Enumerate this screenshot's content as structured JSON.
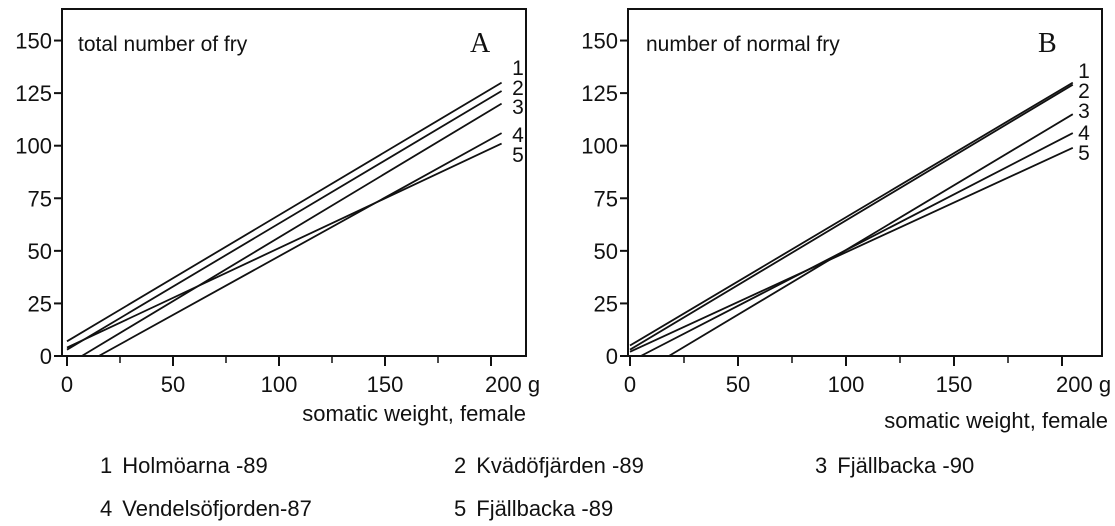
{
  "chart_data": [
    {
      "type": "line",
      "panel": "A",
      "title": "total number of fry",
      "xlabel": "somatic weight, female",
      "ylabel": "",
      "xlim": [
        0,
        205
      ],
      "ylim": [
        0,
        165
      ],
      "x_ticks": [
        "0",
        "50",
        "100",
        "150",
        "200 g"
      ],
      "x_tick_values": [
        0,
        50,
        100,
        150,
        200
      ],
      "y_ticks": [
        "0",
        "25",
        "50",
        "75",
        "100",
        "125",
        "150"
      ],
      "y_tick_values": [
        0,
        25,
        50,
        75,
        100,
        125,
        150
      ],
      "grid": false,
      "series": [
        {
          "name": "1",
          "x": [
            0,
            205
          ],
          "y": [
            7,
            130
          ]
        },
        {
          "name": "2",
          "x": [
            0,
            205
          ],
          "y": [
            3,
            126
          ]
        },
        {
          "name": "3",
          "x": [
            7,
            205
          ],
          "y": [
            0,
            120
          ]
        },
        {
          "name": "4",
          "x": [
            15,
            205
          ],
          "y": [
            0,
            106
          ]
        },
        {
          "name": "5",
          "x": [
            0,
            205
          ],
          "y": [
            4,
            101
          ]
        }
      ]
    },
    {
      "type": "line",
      "panel": "B",
      "title": "number of normal fry",
      "xlabel": "somatic weight, female",
      "ylabel": "",
      "xlim": [
        0,
        205
      ],
      "ylim": [
        0,
        165
      ],
      "x_ticks": [
        "0",
        "50",
        "100",
        "150",
        "200 g"
      ],
      "x_tick_values": [
        0,
        50,
        100,
        150,
        200
      ],
      "y_ticks": [
        "0",
        "25",
        "50",
        "75",
        "100",
        "125",
        "150"
      ],
      "y_tick_values": [
        0,
        25,
        50,
        75,
        100,
        125,
        150
      ],
      "grid": false,
      "series": [
        {
          "name": "1",
          "x": [
            0,
            205
          ],
          "y": [
            5,
            130
          ]
        },
        {
          "name": "2",
          "x": [
            0,
            205
          ],
          "y": [
            3,
            129
          ]
        },
        {
          "name": "3",
          "x": [
            18,
            205
          ],
          "y": [
            0,
            115
          ]
        },
        {
          "name": "4",
          "x": [
            5,
            205
          ],
          "y": [
            0,
            106
          ]
        },
        {
          "name": "5",
          "x": [
            0,
            205
          ],
          "y": [
            2,
            99
          ]
        }
      ]
    }
  ],
  "legend": [
    {
      "number": "1",
      "label": "Holmöarna -89"
    },
    {
      "number": "2",
      "label": "Kvädöfjärden -89"
    },
    {
      "number": "3",
      "label": "Fjällbacka -90"
    },
    {
      "number": "4",
      "label": "Vendelsöfjorden-87"
    },
    {
      "number": "5",
      "label": "Fjällbacka -89"
    }
  ]
}
